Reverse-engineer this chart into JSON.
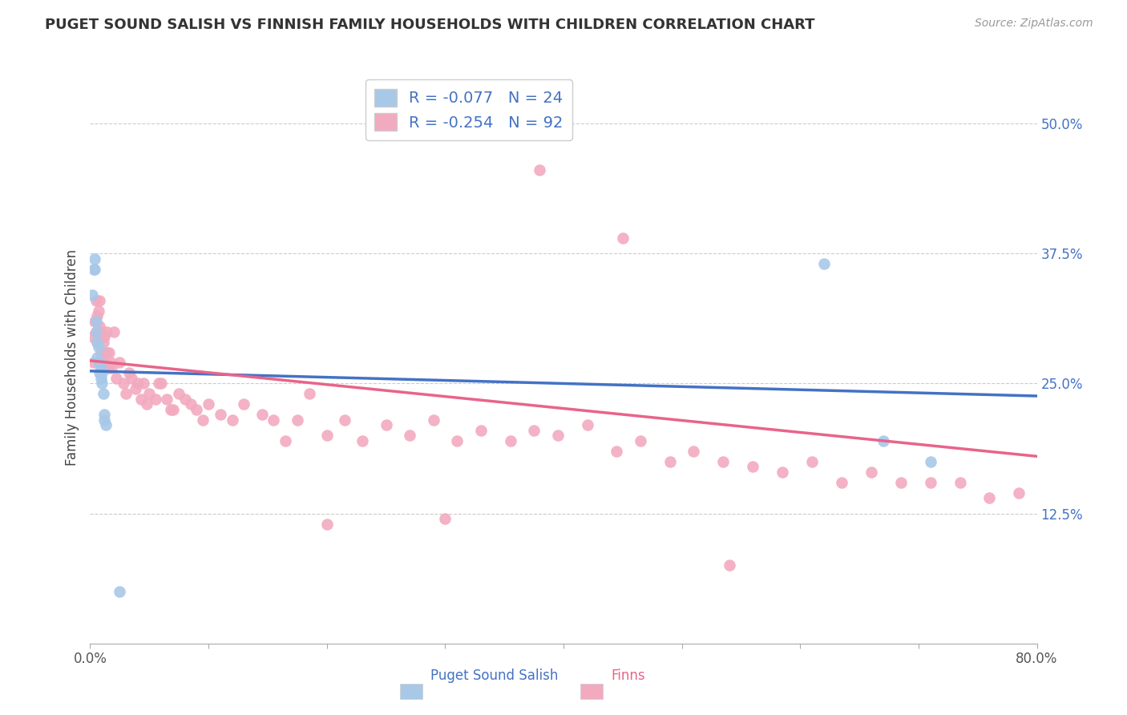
{
  "title": "PUGET SOUND SALISH VS FINNISH FAMILY HOUSEHOLDS WITH CHILDREN CORRELATION CHART",
  "source": "Source: ZipAtlas.com",
  "ylabel": "Family Households with Children",
  "legend_label1": "Puget Sound Salish",
  "legend_label2": "Finns",
  "R1": -0.077,
  "N1": 24,
  "R2": -0.254,
  "N2": 92,
  "xlim": [
    0.0,
    0.8
  ],
  "ylim": [
    0.0,
    0.55
  ],
  "yticks_right": [
    0.5,
    0.375,
    0.25,
    0.125
  ],
  "ytick_right_labels": [
    "50.0%",
    "37.5%",
    "25.0%",
    "12.5%"
  ],
  "color_blue": "#A8C8E8",
  "color_pink": "#F2AABF",
  "color_blue_line": "#4472C4",
  "color_pink_line": "#E8648A",
  "color_text_blue": "#4472C4",
  "color_grid": "#CCCCCC",
  "background_color": "#FFFFFF",
  "blue_intercept": 0.262,
  "blue_slope": -0.03,
  "pink_intercept": 0.272,
  "pink_slope": -0.115,
  "blue_x": [
    0.002,
    0.003,
    0.004,
    0.004,
    0.005,
    0.005,
    0.006,
    0.006,
    0.007,
    0.007,
    0.008,
    0.008,
    0.009,
    0.009,
    0.01,
    0.01,
    0.011,
    0.012,
    0.012,
    0.013,
    0.025,
    0.62,
    0.67,
    0.71
  ],
  "blue_y": [
    0.335,
    0.36,
    0.37,
    0.36,
    0.3,
    0.31,
    0.275,
    0.29,
    0.27,
    0.285,
    0.26,
    0.27,
    0.255,
    0.265,
    0.25,
    0.26,
    0.24,
    0.215,
    0.22,
    0.21,
    0.05,
    0.365,
    0.195,
    0.175
  ],
  "pink_x": [
    0.002,
    0.003,
    0.004,
    0.005,
    0.005,
    0.006,
    0.006,
    0.007,
    0.007,
    0.008,
    0.008,
    0.009,
    0.009,
    0.01,
    0.01,
    0.011,
    0.011,
    0.012,
    0.012,
    0.013,
    0.013,
    0.014,
    0.014,
    0.015,
    0.016,
    0.017,
    0.018,
    0.02,
    0.022,
    0.025,
    0.028,
    0.03,
    0.033,
    0.035,
    0.038,
    0.04,
    0.043,
    0.045,
    0.048,
    0.05,
    0.055,
    0.058,
    0.06,
    0.065,
    0.068,
    0.07,
    0.075,
    0.08,
    0.085,
    0.09,
    0.095,
    0.1,
    0.11,
    0.12,
    0.13,
    0.145,
    0.155,
    0.165,
    0.175,
    0.185,
    0.2,
    0.215,
    0.23,
    0.25,
    0.27,
    0.29,
    0.31,
    0.33,
    0.355,
    0.375,
    0.395,
    0.42,
    0.445,
    0.465,
    0.49,
    0.51,
    0.535,
    0.56,
    0.585,
    0.61,
    0.635,
    0.66,
    0.685,
    0.71,
    0.735,
    0.76,
    0.785,
    0.45,
    0.3,
    0.38,
    0.2,
    0.54
  ],
  "pink_y": [
    0.295,
    0.27,
    0.31,
    0.3,
    0.33,
    0.29,
    0.315,
    0.295,
    0.32,
    0.305,
    0.33,
    0.28,
    0.3,
    0.275,
    0.295,
    0.27,
    0.29,
    0.275,
    0.295,
    0.265,
    0.28,
    0.28,
    0.3,
    0.265,
    0.28,
    0.27,
    0.265,
    0.3,
    0.255,
    0.27,
    0.25,
    0.24,
    0.26,
    0.255,
    0.245,
    0.25,
    0.235,
    0.25,
    0.23,
    0.24,
    0.235,
    0.25,
    0.25,
    0.235,
    0.225,
    0.225,
    0.24,
    0.235,
    0.23,
    0.225,
    0.215,
    0.23,
    0.22,
    0.215,
    0.23,
    0.22,
    0.215,
    0.195,
    0.215,
    0.24,
    0.2,
    0.215,
    0.195,
    0.21,
    0.2,
    0.215,
    0.195,
    0.205,
    0.195,
    0.205,
    0.2,
    0.21,
    0.185,
    0.195,
    0.175,
    0.185,
    0.175,
    0.17,
    0.165,
    0.175,
    0.155,
    0.165,
    0.155,
    0.155,
    0.155,
    0.14,
    0.145,
    0.39,
    0.12,
    0.455,
    0.115,
    0.075
  ]
}
